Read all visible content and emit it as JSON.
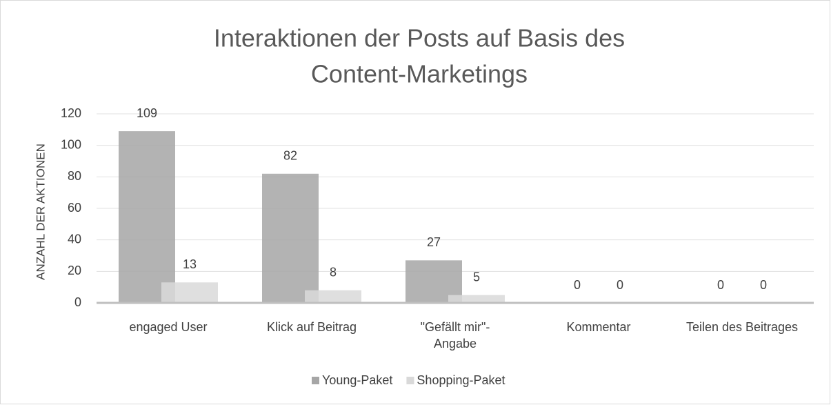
{
  "chart_data": {
    "type": "bar",
    "title": [
      "Interaktionen der Posts auf Basis des",
      "Content-Marketings"
    ],
    "y_label": "ANZAHL DER AKTIONEN",
    "categories": [
      "engaged User",
      "Klick auf Beitrag",
      "\"Gefällt mir\"-\nAngabe",
      "Kommentar",
      "Teilen des Beitrages"
    ],
    "series": [
      {
        "name": "Young-Paket",
        "color": "#a6a6a6",
        "values": [
          109,
          82,
          27,
          0,
          0
        ]
      },
      {
        "name": "Shopping-Paket",
        "color": "#d9d9d9",
        "values": [
          13,
          8,
          5,
          0,
          0
        ]
      }
    ],
    "ylim": [
      0,
      120
    ],
    "yticks": [
      0,
      20,
      40,
      60,
      80,
      100,
      120
    ],
    "grid": true,
    "legend": "bottom"
  }
}
